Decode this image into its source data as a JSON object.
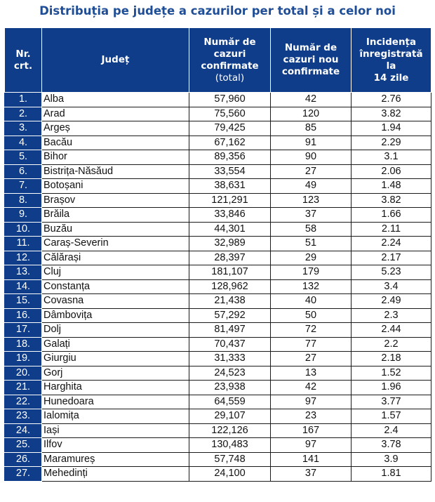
{
  "title": "Distribuția pe județe a cazurilor per total și a celor noi",
  "headers": {
    "nr_line1": "Nr.",
    "nr_line2": "crt.",
    "judet": "Județ",
    "total_line1": "Număr de",
    "total_line2": "cazuri",
    "total_line3": "confirmate",
    "total_line4": "(total)",
    "noi_line1": "Număr de",
    "noi_line2": "cazuri nou",
    "noi_line3": "confirmate",
    "inc_line1": "Incidența",
    "inc_line2": "înregistrată la",
    "inc_line3": "14 zile"
  },
  "rows": [
    {
      "nr": "1.",
      "judet": "Alba",
      "total": "57,960",
      "noi": "42",
      "incidenta": "2.76"
    },
    {
      "nr": "2.",
      "judet": "Arad",
      "total": "75,560",
      "noi": "120",
      "incidenta": "3.82"
    },
    {
      "nr": "3.",
      "judet": "Argeș",
      "total": "79,425",
      "noi": "85",
      "incidenta": "1.94"
    },
    {
      "nr": "4.",
      "judet": "Bacău",
      "total": "67,162",
      "noi": "91",
      "incidenta": "2.29"
    },
    {
      "nr": "5.",
      "judet": "Bihor",
      "total": "89,356",
      "noi": "90",
      "incidenta": "3.1"
    },
    {
      "nr": "6.",
      "judet": "Bistrița-Năsăud",
      "total": "33,554",
      "noi": "27",
      "incidenta": "2.06"
    },
    {
      "nr": "7.",
      "judet": "Botoșani",
      "total": "38,631",
      "noi": "49",
      "incidenta": "1.48"
    },
    {
      "nr": "8.",
      "judet": "Brașov",
      "total": "121,291",
      "noi": "123",
      "incidenta": "3.82"
    },
    {
      "nr": "9.",
      "judet": "Brăila",
      "total": "33,846",
      "noi": "37",
      "incidenta": "1.66"
    },
    {
      "nr": "10.",
      "judet": "Buzău",
      "total": "44,301",
      "noi": "58",
      "incidenta": "2.11"
    },
    {
      "nr": "11.",
      "judet": "Caraș-Severin",
      "total": "32,989",
      "noi": "51",
      "incidenta": "2.24"
    },
    {
      "nr": "12.",
      "judet": "Călărași",
      "total": "28,397",
      "noi": "29",
      "incidenta": "2.17"
    },
    {
      "nr": "13.",
      "judet": "Cluj",
      "total": "181,107",
      "noi": "179",
      "incidenta": "5.23"
    },
    {
      "nr": "14.",
      "judet": "Constanța",
      "total": "128,962",
      "noi": "132",
      "incidenta": "3.4"
    },
    {
      "nr": "15.",
      "judet": "Covasna",
      "total": "21,438",
      "noi": "40",
      "incidenta": "2.49"
    },
    {
      "nr": "16.",
      "judet": "Dâmbovița",
      "total": "57,292",
      "noi": "50",
      "incidenta": "2.3"
    },
    {
      "nr": "17.",
      "judet": "Dolj",
      "total": "81,497",
      "noi": "72",
      "incidenta": "2.44"
    },
    {
      "nr": "18.",
      "judet": "Galați",
      "total": "70,437",
      "noi": "77",
      "incidenta": "2.2"
    },
    {
      "nr": "19.",
      "judet": "Giurgiu",
      "total": "31,333",
      "noi": "27",
      "incidenta": "2.18"
    },
    {
      "nr": "20.",
      "judet": "Gorj",
      "total": "24,523",
      "noi": "13",
      "incidenta": "1.52"
    },
    {
      "nr": "21.",
      "judet": "Harghita",
      "total": "23,938",
      "noi": "42",
      "incidenta": "1.96"
    },
    {
      "nr": "22.",
      "judet": "Hunedoara",
      "total": "64,559",
      "noi": "97",
      "incidenta": "3.77"
    },
    {
      "nr": "23.",
      "judet": "Ialomița",
      "total": "29,107",
      "noi": "23",
      "incidenta": "1.57"
    },
    {
      "nr": "24.",
      "judet": "Iași",
      "total": "122,126",
      "noi": "167",
      "incidenta": "2.4"
    },
    {
      "nr": "25.",
      "judet": "Ilfov",
      "total": "130,483",
      "noi": "97",
      "incidenta": "3.78"
    },
    {
      "nr": "26.",
      "judet": "Maramureș",
      "total": "57,748",
      "noi": "141",
      "incidenta": "3.9"
    },
    {
      "nr": "27.",
      "judet": "Mehedinți",
      "total": "24,100",
      "noi": "37",
      "incidenta": "1.81"
    }
  ],
  "colors": {
    "title": "#1f4e96",
    "header_bg": "#0f3d8a",
    "header_text": "#ffffff",
    "grid": "#1a1a1a"
  }
}
